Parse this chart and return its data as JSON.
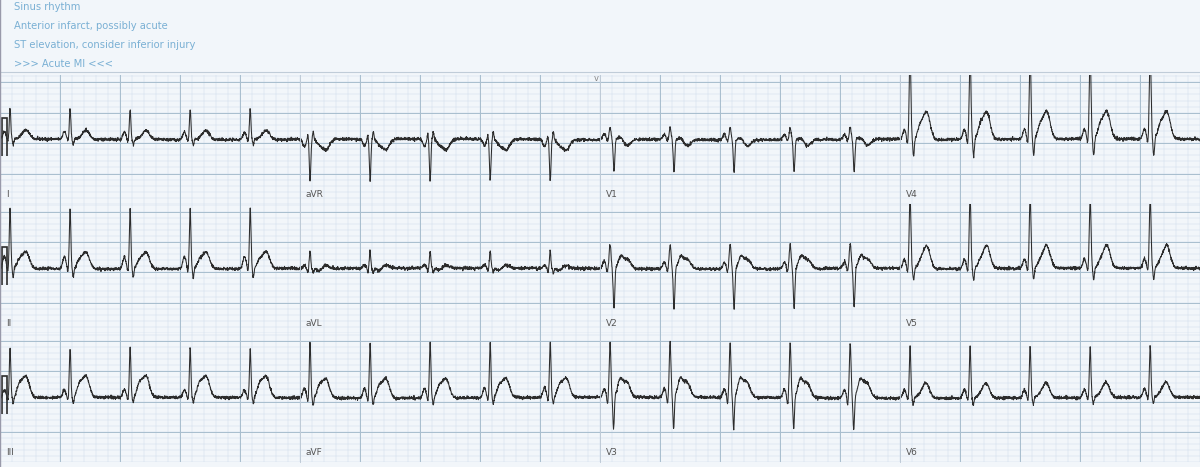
{
  "bg_color": "#f2f6fa",
  "grid_minor_color": "#d0dcea",
  "grid_major_color": "#b8ccd e",
  "ecg_color": "#2c2c2c",
  "text_color": "#7ab0d4",
  "sep_color": "#c0ccd8",
  "diagnosis_lines": [
    "Sinus rhythm",
    "Anterior infarct, possibly acute",
    "ST elevation, consider inferior injury",
    ">>> Acute MI <<<"
  ],
  "row_leads": [
    [
      "I",
      "aVR",
      "V1",
      "V4"
    ],
    [
      "II",
      "aVL",
      "V2",
      "V5"
    ],
    [
      "III",
      "aVF",
      "V3",
      "V6"
    ]
  ],
  "fig_width": 12.0,
  "fig_height": 4.67,
  "dpi": 100,
  "hr": 72
}
